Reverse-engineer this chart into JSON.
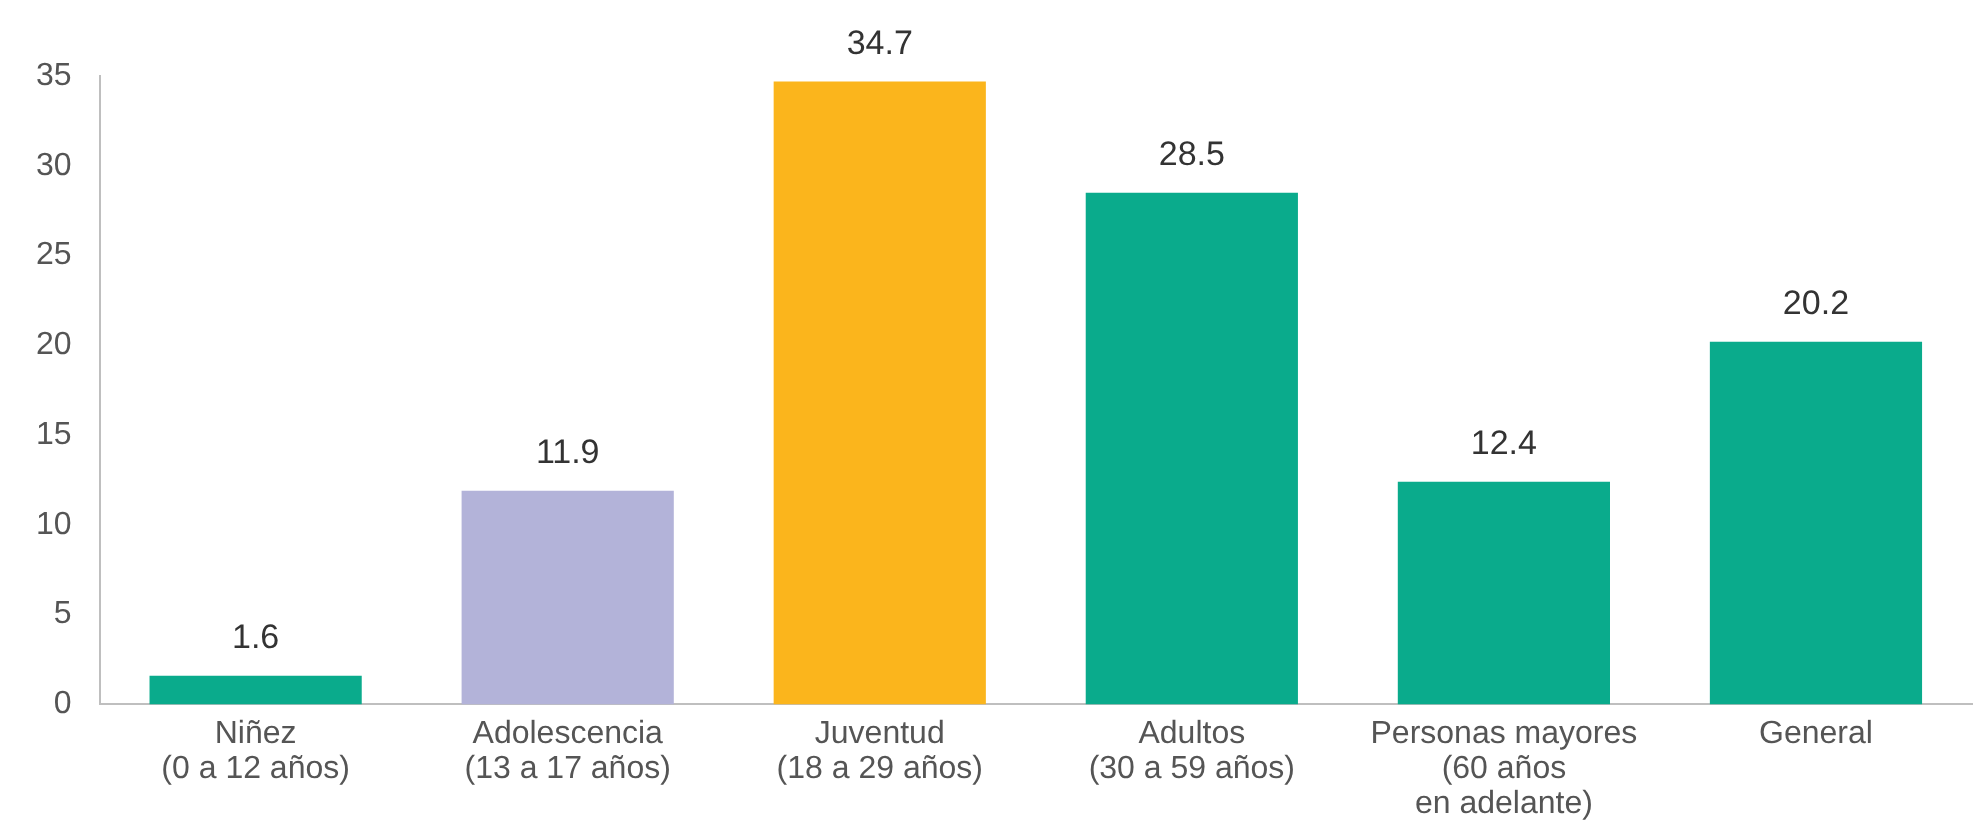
{
  "chart_data": {
    "type": "bar",
    "categories": [
      "Niñez\n(0 a 12 años)",
      "Adolescencia\n(13 a 17 años)",
      "Juventud\n(18 a 29 años)",
      "Adultos\n(30 a 59 años)",
      "Personas mayores\n(60 años\nen adelante)",
      "General"
    ],
    "values": [
      1.6,
      11.9,
      34.7,
      28.5,
      12.4,
      20.2
    ],
    "colors": [
      "#0aab8c",
      "#b3b3d9",
      "#fbb51c",
      "#0aab8c",
      "#0aab8c",
      "#0aab8c"
    ],
    "ylim": [
      0,
      35
    ],
    "yticks": [
      0,
      5,
      10,
      15,
      20,
      25,
      30,
      35
    ],
    "grid": false,
    "legend": false,
    "data_labels": true
  }
}
